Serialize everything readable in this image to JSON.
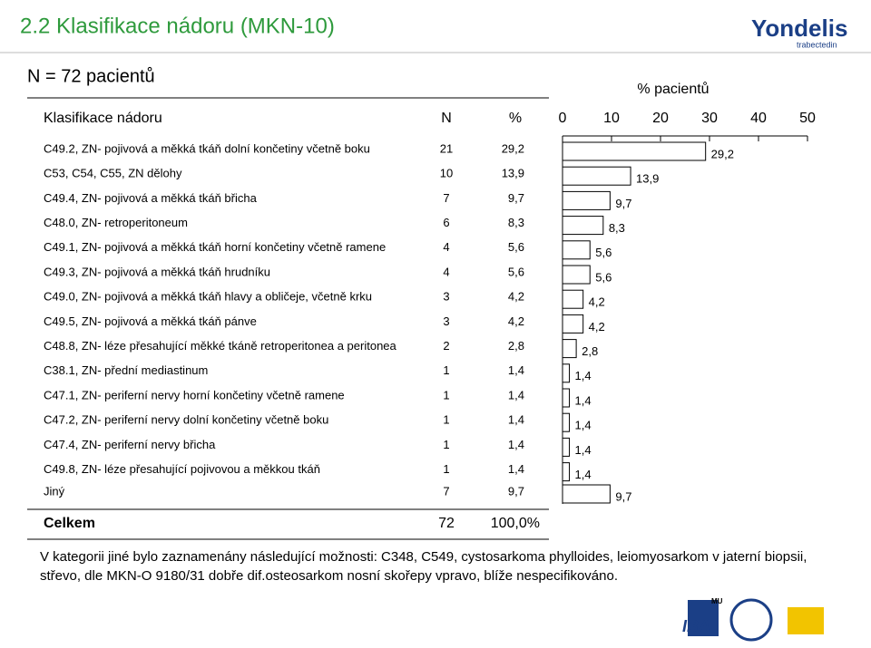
{
  "header": {
    "title": "2.2 Klasifikace nádoru (MKN-10)",
    "subtitle": "N = 72 pacientů"
  },
  "logos": {
    "brand": "Yondelis",
    "brand_sub": "trabectedin",
    "iba": "IBA",
    "mu": "MU"
  },
  "chart_data": {
    "type": "bar",
    "orientation": "horizontal",
    "axis_label": "% pacientů",
    "column_headers": [
      "Klasifikace nádoru",
      "N",
      "%"
    ],
    "categories": [
      "C49.2, ZN- pojivová a měkká tkáň dolní končetiny včetně boku",
      "C53, C54, C55, ZN dělohy",
      "C49.4, ZN- pojivová a měkká tkáň břicha",
      "C48.0, ZN- retroperitoneum",
      "C49.1, ZN- pojivová a měkká tkáň horní končetiny včetně ramene",
      "C49.3, ZN- pojivová a měkká tkáň hrudníku",
      "C49.0, ZN- pojivová a měkká tkáň hlavy a obličeje, včetně krku",
      "C49.5, ZN- pojivová a měkká tkáň pánve",
      "C48.8, ZN- léze přesahující měkké tkáně retroperitonea a peritonea",
      "C38.1, ZN- přední mediastinum",
      "C47.1, ZN- periferní nervy horní končetiny včetně ramene",
      "C47.2, ZN- periferní nervy dolní končetiny včetně boku",
      "C47.4, ZN- periferní nervy břicha",
      "C49.8, ZN- léze přesahující pojivovou a měkkou tkáň",
      "Jiný"
    ],
    "n": [
      21,
      10,
      7,
      6,
      4,
      4,
      3,
      3,
      2,
      1,
      1,
      1,
      1,
      1,
      7
    ],
    "values": [
      29.2,
      13.9,
      9.7,
      8.3,
      5.6,
      5.6,
      4.2,
      4.2,
      2.8,
      1.4,
      1.4,
      1.4,
      1.4,
      1.4,
      9.7
    ],
    "value_labels": [
      "29,2",
      "13,9",
      "9,7",
      "8,3",
      "5,6",
      "5,6",
      "4,2",
      "4,2",
      "2,8",
      "1,4",
      "1,4",
      "1,4",
      "1,4",
      "1,4",
      "9,7"
    ],
    "xlim": [
      0,
      50
    ],
    "xticks": [
      0,
      10,
      20,
      30,
      40,
      50
    ],
    "color": "#ffffff",
    "edge_color": "#000000",
    "total": {
      "label": "Celkem",
      "n": 72,
      "percent_label": "100,0%"
    }
  },
  "footnote": "V kategorii jiné bylo zaznamenány následující možnosti: C348, C549, cystosarkoma phylloides, leiomyosarkom v jaterní biopsii, střevo, dle MKN-O 9180/31 dobře dif.osteosarkom nosní skořepy vpravo, blíže nespecifikováno."
}
